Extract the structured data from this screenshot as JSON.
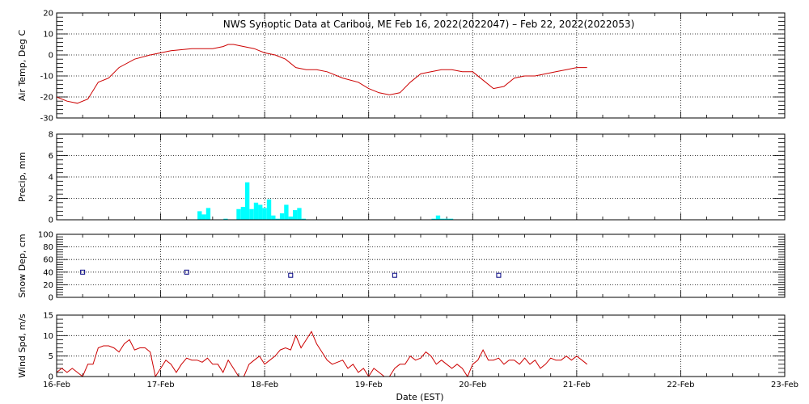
{
  "figure": {
    "title": "NWS Synoptic Data at Caribou, ME    Feb 16, 2022(2022047) – Feb 22, 2022(2022053)",
    "xlabel": "Date (EST)",
    "x_tick_labels": [
      "16-Feb",
      "17-Feb",
      "18-Feb",
      "19-Feb",
      "20-Feb",
      "21-Feb",
      "22-Feb",
      "23-Feb"
    ],
    "x_range_days": [
      0,
      7
    ],
    "gridlines": "dotted, daily",
    "colors": {
      "temp": "#cc0000",
      "precip": "#00ffff",
      "snow": "#000080",
      "wind": "#cc0000",
      "axes": "#000000"
    }
  },
  "chart_data": [
    {
      "type": "line",
      "ylabel": "Air Temp, Deg C",
      "ylim": [
        -30,
        20
      ],
      "yticks": [
        -30,
        -20,
        -10,
        0,
        10,
        20
      ],
      "x_units": "days since 16-Feb 00:00 EST",
      "x": [
        0,
        0.1,
        0.2,
        0.3,
        0.4,
        0.5,
        0.6,
        0.75,
        0.9,
        1.0,
        1.1,
        1.3,
        1.5,
        1.6,
        1.65,
        1.7,
        1.8,
        1.9,
        1.95,
        2.0,
        2.1,
        2.2,
        2.3,
        2.4,
        2.5,
        2.6,
        2.75,
        2.9,
        3.0,
        3.1,
        3.2,
        3.3,
        3.4,
        3.5,
        3.6,
        3.7,
        3.8,
        3.9,
        4.0,
        4.1,
        4.2,
        4.3,
        4.4,
        4.5,
        4.6,
        4.7,
        4.8,
        4.9,
        5.0,
        5.05,
        5.1
      ],
      "values": [
        -20,
        -22,
        -23,
        -21,
        -13,
        -11,
        -6,
        -2,
        0,
        1,
        2,
        3,
        3,
        4,
        5,
        5,
        4,
        3,
        2,
        1,
        0,
        -2,
        -6,
        -7,
        -7,
        -8,
        -11,
        -13,
        -16,
        -18,
        -19,
        -18,
        -13,
        -9,
        -8,
        -7,
        -7,
        -8,
        -8,
        -12,
        -16,
        -15,
        -11,
        -10,
        -10,
        -9,
        -8,
        -7,
        -6,
        -6,
        -6
      ]
    },
    {
      "type": "bar",
      "ylabel": "Precip, mm",
      "ylim": [
        0,
        8
      ],
      "yticks": [
        0,
        2,
        4,
        6,
        8
      ],
      "x_units": "days since 16-Feb 00:00 EST",
      "x": [
        1.375,
        1.417,
        1.458,
        1.625,
        1.75,
        1.792,
        1.833,
        1.875,
        1.917,
        1.958,
        2.0,
        2.042,
        2.083,
        2.125,
        2.167,
        2.208,
        2.25,
        2.292,
        2.333,
        2.375,
        3.625,
        3.667,
        3.708,
        3.75,
        3.792
      ],
      "values": [
        0.8,
        0.5,
        1.1,
        0.1,
        1.0,
        1.2,
        3.5,
        1.0,
        1.6,
        1.4,
        1.1,
        1.9,
        0.4,
        0.1,
        0.6,
        1.4,
        0.3,
        0.9,
        1.1,
        0.1,
        0.1,
        0.4,
        0.1,
        0.1,
        0.1
      ]
    },
    {
      "type": "scatter",
      "ylabel": "Snow Dep, cm",
      "ylim": [
        0,
        100
      ],
      "yticks": [
        0,
        20,
        40,
        60,
        80,
        100
      ],
      "x_units": "days since 16-Feb 00:00 EST",
      "x": [
        0.25,
        1.25,
        2.25,
        3.25,
        4.25
      ],
      "values": [
        40,
        40,
        35,
        35,
        35
      ]
    },
    {
      "type": "line",
      "ylabel": "Wind Spd, m/s",
      "ylim": [
        0,
        15
      ],
      "yticks": [
        0,
        5,
        10,
        15
      ],
      "x_units": "days since 16-Feb 00:00 EST",
      "x": [
        0,
        0.05,
        0.1,
        0.15,
        0.2,
        0.25,
        0.3,
        0.35,
        0.4,
        0.45,
        0.5,
        0.55,
        0.6,
        0.65,
        0.7,
        0.75,
        0.8,
        0.85,
        0.9,
        0.95,
        1.0,
        1.05,
        1.1,
        1.15,
        1.2,
        1.25,
        1.3,
        1.35,
        1.4,
        1.45,
        1.5,
        1.55,
        1.6,
        1.65,
        1.7,
        1.75,
        1.8,
        1.85,
        1.9,
        1.95,
        2.0,
        2.05,
        2.1,
        2.15,
        2.2,
        2.25,
        2.3,
        2.35,
        2.4,
        2.45,
        2.5,
        2.55,
        2.6,
        2.65,
        2.7,
        2.75,
        2.8,
        2.85,
        2.9,
        2.95,
        3.0,
        3.05,
        3.1,
        3.15,
        3.2,
        3.25,
        3.3,
        3.35,
        3.4,
        3.45,
        3.5,
        3.55,
        3.6,
        3.65,
        3.7,
        3.75,
        3.8,
        3.85,
        3.9,
        3.95,
        4.0,
        4.05,
        4.1,
        4.15,
        4.2,
        4.25,
        4.3,
        4.35,
        4.4,
        4.45,
        4.5,
        4.55,
        4.6,
        4.65,
        4.7,
        4.75,
        4.8,
        4.85,
        4.9,
        4.95,
        5.0,
        5.05,
        5.1
      ],
      "values": [
        1,
        2,
        1,
        2,
        1,
        0,
        3,
        3,
        7,
        7.5,
        7.5,
        7,
        6,
        8,
        9,
        6.5,
        7,
        7,
        6,
        0,
        2,
        4,
        3,
        1,
        3,
        4.5,
        4,
        4,
        3.5,
        4.5,
        3,
        3,
        1,
        4,
        2,
        0,
        0,
        3,
        4,
        5,
        3,
        4,
        5,
        6.5,
        7,
        6.5,
        10,
        7,
        9,
        11,
        8,
        6,
        4,
        3,
        3.5,
        4,
        2,
        3,
        1,
        2,
        0,
        2,
        1,
        0,
        0,
        2,
        3,
        3,
        5,
        4,
        4.5,
        6,
        5,
        3,
        4,
        3,
        2,
        3,
        2,
        0,
        3,
        4,
        6.5,
        4,
        4,
        4.5,
        3,
        4,
        4,
        3,
        4.5,
        3,
        4,
        2,
        3,
        4.5,
        4,
        4,
        5,
        4,
        5,
        4,
        3
      ]
    }
  ]
}
